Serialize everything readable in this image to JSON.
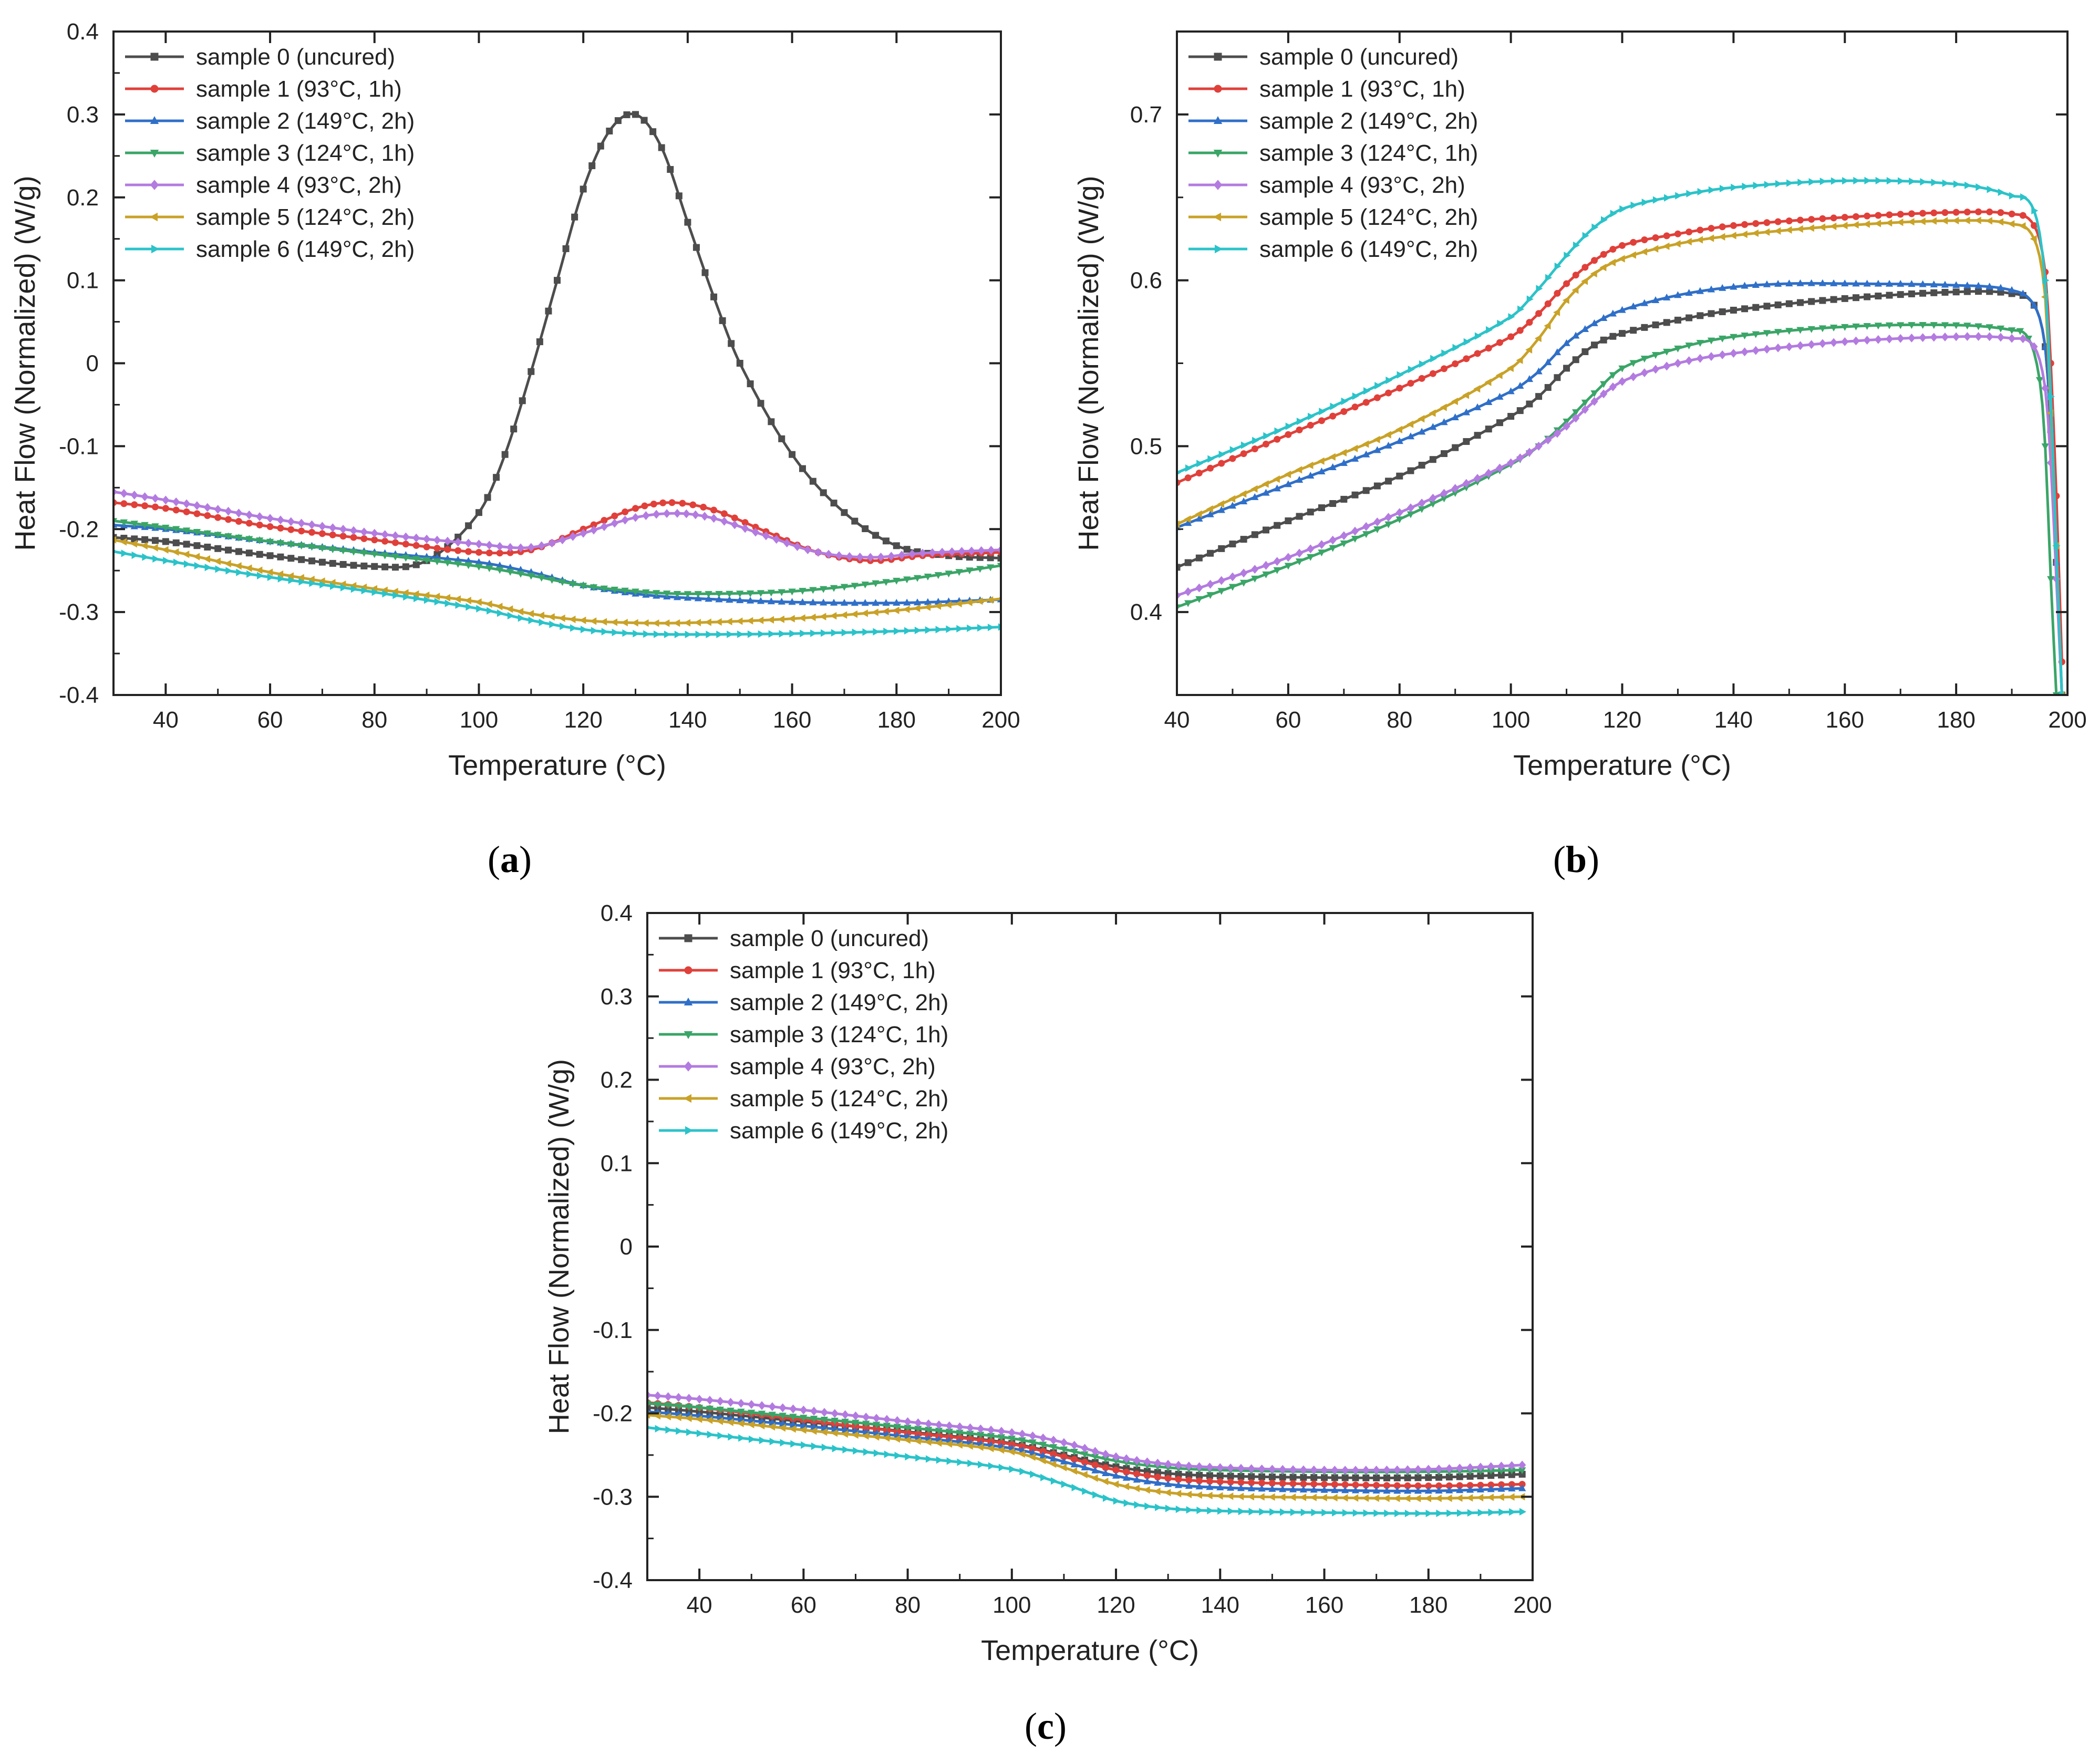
{
  "figure": {
    "colors": {
      "sample0": "#4d4d4d",
      "sample1": "#e0403a",
      "sample2": "#2f6fc8",
      "sample3": "#3aa567",
      "sample4": "#b37be0",
      "sample5": "#c9a227",
      "sample6": "#2bc3c9"
    }
  },
  "chart_data": [
    {
      "id": "a",
      "panel_label": "(a)",
      "type": "line",
      "xlabel": "Temperature (°C)",
      "ylabel": "Heat Flow (Normalized) (W/g)",
      "xlim": [
        30,
        200
      ],
      "ylim": [
        -0.4,
        0.4
      ],
      "xticks": [
        40,
        60,
        80,
        100,
        120,
        140,
        160,
        180,
        200
      ],
      "yticks": [
        -0.4,
        -0.3,
        -0.2,
        -0.1,
        0,
        0.1,
        0.2,
        0.3,
        0.4
      ],
      "ytick_labels": [
        "-0.4",
        "-0.3",
        "-0.2",
        "-0.1",
        "0",
        "0.1",
        "0.2",
        "0.3",
        "0.4"
      ],
      "legend_position": "top-left",
      "series": [
        {
          "name": "sample 0 (uncured)",
          "color_key": "sample0",
          "marker": "square",
          "x": [
            30,
            40,
            60,
            80,
            90,
            100,
            105,
            110,
            115,
            120,
            125,
            130,
            135,
            140,
            145,
            150,
            160,
            170,
            180,
            190,
            200
          ],
          "y": [
            -0.21,
            -0.215,
            -0.232,
            -0.245,
            -0.238,
            -0.18,
            -0.11,
            -0.01,
            0.1,
            0.21,
            0.28,
            0.3,
            0.26,
            0.17,
            0.08,
            0.0,
            -0.11,
            -0.18,
            -0.22,
            -0.232,
            -0.235
          ]
        },
        {
          "name": "sample 1 (93°C, 1h)",
          "color_key": "sample1",
          "marker": "circle",
          "x": [
            30,
            40,
            60,
            80,
            100,
            110,
            120,
            130,
            137,
            145,
            155,
            165,
            175,
            185,
            200
          ],
          "y": [
            -0.168,
            -0.175,
            -0.197,
            -0.213,
            -0.228,
            -0.225,
            -0.2,
            -0.175,
            -0.168,
            -0.177,
            -0.203,
            -0.228,
            -0.238,
            -0.232,
            -0.228
          ]
        },
        {
          "name": "sample 2 (149°C, 2h)",
          "color_key": "sample2",
          "marker": "triangle-up",
          "x": [
            30,
            40,
            60,
            80,
            100,
            110,
            120,
            130,
            140,
            160,
            180,
            200
          ],
          "y": [
            -0.195,
            -0.2,
            -0.215,
            -0.228,
            -0.24,
            -0.252,
            -0.268,
            -0.278,
            -0.283,
            -0.288,
            -0.289,
            -0.285
          ]
        },
        {
          "name": "sample 3 (124°C, 1h)",
          "color_key": "sample3",
          "marker": "triangle-down",
          "x": [
            30,
            40,
            60,
            80,
            100,
            110,
            120,
            130,
            140,
            160,
            180,
            200
          ],
          "y": [
            -0.19,
            -0.198,
            -0.215,
            -0.23,
            -0.245,
            -0.256,
            -0.268,
            -0.275,
            -0.278,
            -0.275,
            -0.262,
            -0.244
          ]
        },
        {
          "name": "sample 4 (93°C, 2h)",
          "color_key": "sample4",
          "marker": "diamond",
          "x": [
            30,
            40,
            60,
            80,
            100,
            110,
            120,
            130,
            138,
            145,
            155,
            165,
            175,
            185,
            200
          ],
          "y": [
            -0.155,
            -0.165,
            -0.187,
            -0.205,
            -0.218,
            -0.222,
            -0.205,
            -0.186,
            -0.181,
            -0.187,
            -0.208,
            -0.228,
            -0.234,
            -0.229,
            -0.225
          ]
        },
        {
          "name": "sample 5 (124°C, 2h)",
          "color_key": "sample5",
          "marker": "triangle-left",
          "x": [
            30,
            40,
            60,
            80,
            100,
            110,
            120,
            130,
            140,
            160,
            180,
            200
          ],
          "y": [
            -0.213,
            -0.225,
            -0.252,
            -0.272,
            -0.288,
            -0.302,
            -0.31,
            -0.313,
            -0.313,
            -0.308,
            -0.298,
            -0.284
          ]
        },
        {
          "name": "sample 6 (149°C, 2h)",
          "color_key": "sample6",
          "marker": "triangle-right",
          "x": [
            30,
            40,
            60,
            80,
            100,
            110,
            120,
            130,
            140,
            160,
            180,
            200
          ],
          "y": [
            -0.227,
            -0.238,
            -0.258,
            -0.276,
            -0.296,
            -0.31,
            -0.321,
            -0.326,
            -0.327,
            -0.326,
            -0.323,
            -0.318
          ]
        }
      ]
    },
    {
      "id": "b",
      "panel_label": "(b)",
      "type": "line",
      "xlabel": "Temperature (°C)",
      "ylabel": "Heat Flow (Normalized) (W/g)",
      "xlim": [
        40,
        200
      ],
      "ylim": [
        0.35,
        0.75
      ],
      "xticks": [
        40,
        60,
        80,
        100,
        120,
        140,
        160,
        180,
        200
      ],
      "yticks": [
        0.4,
        0.5,
        0.6,
        0.7
      ],
      "ytick_labels": [
        "0.4",
        "0.5",
        "0.6",
        "0.7"
      ],
      "legend_position": "top-left",
      "series": [
        {
          "name": "sample 0 (uncured)",
          "color_key": "sample0",
          "marker": "square",
          "x": [
            40,
            60,
            80,
            100,
            105,
            110,
            115,
            120,
            130,
            140,
            160,
            180,
            190,
            194,
            196,
            197,
            198,
            199
          ],
          "y": [
            0.427,
            0.455,
            0.482,
            0.518,
            0.53,
            0.547,
            0.561,
            0.568,
            0.576,
            0.582,
            0.589,
            0.593,
            0.592,
            0.585,
            0.56,
            0.51,
            0.43,
            0.35
          ]
        },
        {
          "name": "sample 1 (93°C, 1h)",
          "color_key": "sample1",
          "marker": "circle",
          "x": [
            40,
            60,
            80,
            100,
            105,
            110,
            115,
            120,
            130,
            140,
            160,
            180,
            190,
            194,
            196,
            197,
            198,
            199
          ],
          "y": [
            0.478,
            0.507,
            0.535,
            0.566,
            0.58,
            0.598,
            0.612,
            0.621,
            0.628,
            0.633,
            0.638,
            0.641,
            0.64,
            0.633,
            0.605,
            0.55,
            0.47,
            0.37
          ]
        },
        {
          "name": "sample 2 (149°C, 2h)",
          "color_key": "sample2",
          "marker": "triangle-up",
          "x": [
            40,
            60,
            80,
            100,
            105,
            110,
            115,
            120,
            130,
            140,
            150,
            160,
            180,
            190,
            194,
            196,
            197,
            198,
            199
          ],
          "y": [
            0.451,
            0.477,
            0.503,
            0.533,
            0.545,
            0.562,
            0.574,
            0.582,
            0.591,
            0.596,
            0.598,
            0.598,
            0.597,
            0.594,
            0.585,
            0.56,
            0.51,
            0.43,
            0.35
          ]
        },
        {
          "name": "sample 3 (124°C, 1h)",
          "color_key": "sample3",
          "marker": "triangle-down",
          "x": [
            40,
            60,
            80,
            100,
            105,
            110,
            115,
            120,
            130,
            140,
            160,
            180,
            190,
            193,
            195,
            196,
            197,
            198
          ],
          "y": [
            0.403,
            0.428,
            0.456,
            0.489,
            0.5,
            0.515,
            0.532,
            0.547,
            0.559,
            0.566,
            0.572,
            0.573,
            0.57,
            0.565,
            0.54,
            0.5,
            0.42,
            0.35
          ]
        },
        {
          "name": "sample 4 (93°C, 2h)",
          "color_key": "sample4",
          "marker": "diamond",
          "x": [
            40,
            60,
            80,
            100,
            105,
            110,
            115,
            120,
            130,
            140,
            160,
            180,
            190,
            194,
            196,
            197,
            198,
            199
          ],
          "y": [
            0.41,
            0.433,
            0.46,
            0.49,
            0.5,
            0.512,
            0.527,
            0.539,
            0.55,
            0.556,
            0.563,
            0.566,
            0.565,
            0.56,
            0.535,
            0.49,
            0.42,
            0.35
          ]
        },
        {
          "name": "sample 5 (124°C, 2h)",
          "color_key": "sample5",
          "marker": "triangle-left",
          "x": [
            40,
            60,
            80,
            100,
            105,
            110,
            115,
            120,
            130,
            140,
            160,
            180,
            190,
            194,
            196,
            197,
            198,
            199
          ],
          "y": [
            0.453,
            0.483,
            0.51,
            0.547,
            0.565,
            0.588,
            0.604,
            0.613,
            0.622,
            0.627,
            0.633,
            0.636,
            0.634,
            0.625,
            0.59,
            0.52,
            0.44,
            0.35
          ]
        },
        {
          "name": "sample 6 (149°C, 2h)",
          "color_key": "sample6",
          "marker": "triangle-right",
          "x": [
            40,
            60,
            80,
            100,
            105,
            110,
            115,
            120,
            130,
            140,
            160,
            180,
            190,
            194,
            196,
            197,
            198,
            199
          ],
          "y": [
            0.484,
            0.512,
            0.543,
            0.578,
            0.595,
            0.615,
            0.632,
            0.643,
            0.651,
            0.656,
            0.66,
            0.658,
            0.651,
            0.642,
            0.6,
            0.53,
            0.44,
            0.35
          ]
        }
      ]
    },
    {
      "id": "c",
      "panel_label": "(c)",
      "type": "line",
      "xlabel": "Temperature (°C)",
      "ylabel": "Heat Flow (Normalized) (W/g)",
      "xlim": [
        30,
        200
      ],
      "ylim": [
        -0.4,
        0.4
      ],
      "xticks": [
        40,
        60,
        80,
        100,
        120,
        140,
        160,
        180,
        200
      ],
      "yticks": [
        -0.4,
        -0.3,
        -0.2,
        -0.1,
        0,
        0.1,
        0.2,
        0.3,
        0.4
      ],
      "ytick_labels": [
        "-0.4",
        "-0.3",
        "-0.2",
        "-0.1",
        "0",
        "0.1",
        "0.2",
        "0.3",
        "0.4"
      ],
      "legend_position": "top-left",
      "series": [
        {
          "name": "sample 0 (uncured)",
          "color_key": "sample0",
          "marker": "square",
          "x": [
            30,
            40,
            60,
            80,
            100,
            110,
            120,
            130,
            140,
            160,
            180,
            198
          ],
          "y": [
            -0.193,
            -0.198,
            -0.21,
            -0.222,
            -0.236,
            -0.25,
            -0.264,
            -0.272,
            -0.275,
            -0.277,
            -0.277,
            -0.273
          ]
        },
        {
          "name": "sample 1 (93°C, 1h)",
          "color_key": "sample1",
          "marker": "circle",
          "x": [
            30,
            40,
            60,
            80,
            100,
            110,
            120,
            130,
            140,
            160,
            180,
            198
          ],
          "y": [
            -0.187,
            -0.193,
            -0.208,
            -0.223,
            -0.237,
            -0.252,
            -0.268,
            -0.278,
            -0.282,
            -0.285,
            -0.287,
            -0.285
          ]
        },
        {
          "name": "sample 2 (149°C, 2h)",
          "color_key": "sample2",
          "marker": "triangle-up",
          "x": [
            30,
            40,
            60,
            80,
            100,
            110,
            120,
            130,
            140,
            160,
            180,
            198
          ],
          "y": [
            -0.198,
            -0.203,
            -0.215,
            -0.228,
            -0.242,
            -0.258,
            -0.275,
            -0.285,
            -0.289,
            -0.292,
            -0.293,
            -0.29
          ]
        },
        {
          "name": "sample 3 (124°C, 1h)",
          "color_key": "sample3",
          "marker": "triangle-down",
          "x": [
            30,
            40,
            60,
            80,
            100,
            110,
            120,
            130,
            140,
            160,
            180,
            198
          ],
          "y": [
            -0.188,
            -0.193,
            -0.205,
            -0.217,
            -0.23,
            -0.243,
            -0.257,
            -0.265,
            -0.268,
            -0.27,
            -0.27,
            -0.268
          ]
        },
        {
          "name": "sample 4 (93°C, 2h)",
          "color_key": "sample4",
          "marker": "diamond",
          "x": [
            30,
            40,
            60,
            80,
            100,
            110,
            120,
            130,
            140,
            160,
            180,
            198
          ],
          "y": [
            -0.178,
            -0.183,
            -0.196,
            -0.21,
            -0.223,
            -0.235,
            -0.252,
            -0.261,
            -0.265,
            -0.268,
            -0.267,
            -0.262
          ]
        },
        {
          "name": "sample 5 (124°C, 2h)",
          "color_key": "sample5",
          "marker": "triangle-left",
          "x": [
            30,
            40,
            60,
            80,
            100,
            110,
            120,
            130,
            140,
            160,
            180,
            198
          ],
          "y": [
            -0.202,
            -0.207,
            -0.22,
            -0.232,
            -0.246,
            -0.265,
            -0.285,
            -0.295,
            -0.299,
            -0.301,
            -0.302,
            -0.3
          ]
        },
        {
          "name": "sample 6 (149°C, 2h)",
          "color_key": "sample6",
          "marker": "triangle-right",
          "x": [
            30,
            40,
            60,
            80,
            100,
            110,
            120,
            130,
            140,
            160,
            180,
            198
          ],
          "y": [
            -0.217,
            -0.224,
            -0.238,
            -0.252,
            -0.267,
            -0.285,
            -0.305,
            -0.314,
            -0.317,
            -0.319,
            -0.32,
            -0.318
          ]
        }
      ]
    }
  ]
}
